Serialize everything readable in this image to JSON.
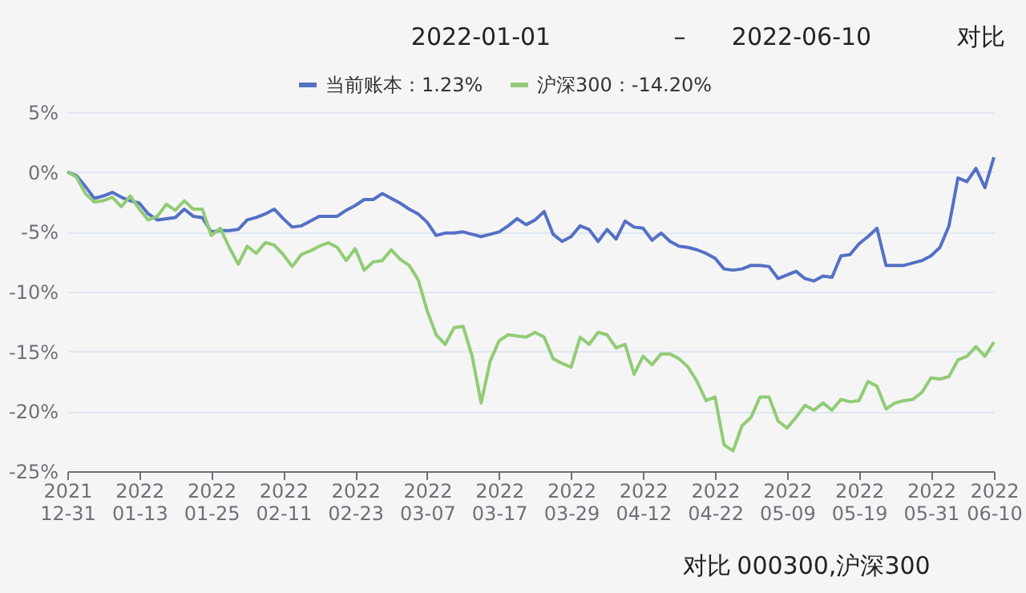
{
  "chart_data": {
    "type": "line",
    "categories": [
      "2021\n12-31",
      null,
      null,
      null,
      null,
      null,
      null,
      null,
      "2022\n01-13",
      null,
      null,
      null,
      null,
      null,
      null,
      null,
      "2022\n01-25",
      null,
      null,
      null,
      null,
      null,
      null,
      null,
      "2022\n02-11",
      null,
      null,
      null,
      null,
      null,
      null,
      null,
      "2022\n02-23",
      null,
      null,
      null,
      null,
      null,
      null,
      null,
      "2022\n03-07",
      null,
      null,
      null,
      null,
      null,
      null,
      null,
      "2022\n03-17",
      null,
      null,
      null,
      null,
      null,
      null,
      null,
      "2022\n03-29",
      null,
      null,
      null,
      null,
      null,
      null,
      null,
      "2022\n04-12",
      null,
      null,
      null,
      null,
      null,
      null,
      null,
      "2022\n04-22",
      null,
      null,
      null,
      null,
      null,
      null,
      null,
      "2022\n05-09",
      null,
      null,
      null,
      null,
      null,
      null,
      null,
      "2022\n05-19",
      null,
      null,
      null,
      null,
      null,
      null,
      null,
      "2022\n05-31",
      null,
      null,
      null,
      null,
      null,
      null,
      "2022\n06-10"
    ],
    "series": [
      {
        "name": "当前账本：1.23%",
        "color": "#5470c6",
        "values": [
          0,
          -0.3,
          -1.2,
          -2.2,
          -2.0,
          -1.7,
          -2.1,
          -2.4,
          -2.6,
          -3.5,
          -4.0,
          -3.9,
          -3.8,
          -3.1,
          -3.7,
          -3.8,
          -5.0,
          -4.9,
          -4.9,
          -4.8,
          -4.0,
          -3.8,
          -3.5,
          -3.1,
          -3.9,
          -4.6,
          -4.5,
          -4.1,
          -3.7,
          -3.7,
          -3.7,
          -3.2,
          -2.8,
          -2.3,
          -2.3,
          -1.8,
          -2.2,
          -2.6,
          -3.1,
          -3.5,
          -4.2,
          -5.3,
          -5.1,
          -5.1,
          -5.0,
          -5.2,
          -5.4,
          -5.2,
          -5.0,
          -4.5,
          -3.9,
          -4.4,
          -4.0,
          -3.3,
          -5.2,
          -5.8,
          -5.4,
          -4.5,
          -4.8,
          -5.8,
          -4.8,
          -5.6,
          -4.1,
          -4.6,
          -4.7,
          -5.7,
          -5.1,
          -5.8,
          -6.2,
          -6.3,
          -6.5,
          -6.8,
          -7.2,
          -8.1,
          -8.2,
          -8.1,
          -7.8,
          -7.8,
          -7.9,
          -8.9,
          -8.6,
          -8.3,
          -8.9,
          -9.1,
          -8.7,
          -8.8,
          -7.0,
          -6.9,
          -6.0,
          -5.4,
          -4.7,
          -7.8,
          -7.8,
          -7.8,
          -7.6,
          -7.4,
          -7.0,
          -6.3,
          -4.5,
          -0.5,
          -0.8,
          0.3,
          -1.3,
          1.23
        ]
      },
      {
        "name": "沪深300：-14.20%",
        "color": "#91cc75",
        "values": [
          0,
          -0.4,
          -1.8,
          -2.5,
          -2.4,
          -2.1,
          -2.9,
          -2.0,
          -3.1,
          -4.0,
          -3.7,
          -2.7,
          -3.2,
          -2.4,
          -3.1,
          -3.1,
          -5.3,
          -4.7,
          -6.3,
          -7.7,
          -6.2,
          -6.8,
          -5.9,
          -6.1,
          -6.9,
          -7.9,
          -6.9,
          -6.6,
          -6.2,
          -5.9,
          -6.3,
          -7.4,
          -6.4,
          -8.2,
          -7.5,
          -7.4,
          -6.5,
          -7.3,
          -7.8,
          -9.0,
          -11.6,
          -13.6,
          -14.4,
          -13.0,
          -12.9,
          -15.4,
          -19.3,
          -15.8,
          -14.1,
          -13.6,
          -13.7,
          -13.8,
          -13.4,
          -13.8,
          -15.6,
          -16.0,
          -16.3,
          -13.8,
          -14.4,
          -13.4,
          -13.6,
          -14.7,
          -14.4,
          -16.9,
          -15.4,
          -16.1,
          -15.2,
          -15.2,
          -15.6,
          -16.3,
          -17.5,
          -19.1,
          -18.8,
          -22.8,
          -23.3,
          -21.2,
          -20.5,
          -18.8,
          -18.8,
          -20.8,
          -21.4,
          -20.5,
          -19.5,
          -19.9,
          -19.3,
          -19.9,
          -19.0,
          -19.2,
          -19.1,
          -17.5,
          -17.9,
          -19.8,
          -19.3,
          -19.1,
          -19.0,
          -18.4,
          -17.2,
          -17.3,
          -17.1,
          -15.7,
          -15.4,
          -14.6,
          -15.4,
          -14.2
        ]
      }
    ],
    "ylim": [
      -25,
      5
    ],
    "yticks": [
      {
        "value": -25,
        "label": "-25%"
      },
      {
        "value": -20,
        "label": "-20%"
      },
      {
        "value": -15,
        "label": "-15%"
      },
      {
        "value": -10,
        "label": "-10%"
      },
      {
        "value": -5,
        "label": "-5%"
      },
      {
        "value": 0,
        "label": "0%"
      },
      {
        "value": 5,
        "label": "5%"
      }
    ],
    "grid": "y",
    "legend": "top",
    "marker": "none",
    "line_style": "solid",
    "annotations": [
      "2022-01-01",
      "–",
      "2022-06-10",
      "对比",
      "对比",
      "000300,沪深300"
    ]
  }
}
